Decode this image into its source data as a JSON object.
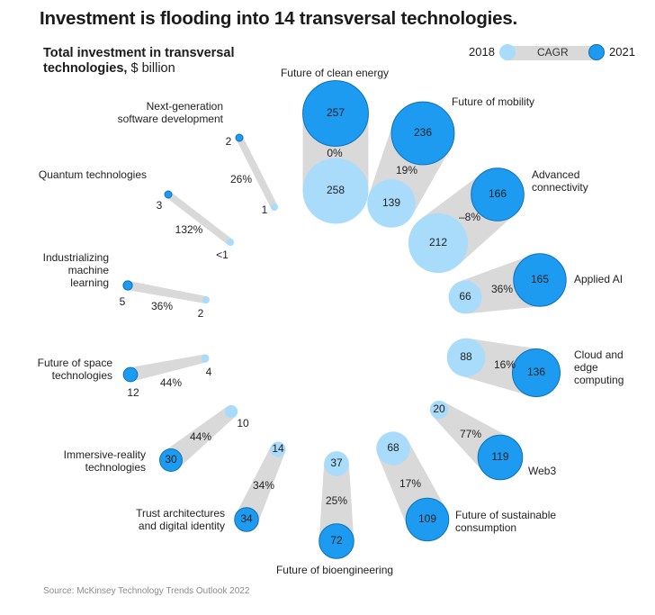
{
  "title": "Investment is flooding into 14 transversal technologies.",
  "subtitle_bold": "Total investment in transversal technologies,",
  "subtitle_unit": "$ billion",
  "legend": {
    "start_label": "2018",
    "middle_label": "CAGR",
    "end_label": "2021"
  },
  "source": "Source: McKinsey Technology Trends Outlook 2022",
  "colors": {
    "v2018": "#a8dcfa",
    "v2021": "#1d9bf0",
    "v2021_stroke": "#0d70b8",
    "connector": "#d9d9d9"
  },
  "chart_data": {
    "type": "bubble",
    "value_unit": "$ billion",
    "series": [
      {
        "name": "2018"
      },
      {
        "name": "2021"
      }
    ],
    "technologies": [
      {
        "name": "Future of clean energy",
        "v2018": 258,
        "v2021": 257,
        "v2018_label": "258",
        "v2021_label": "257",
        "cagr": "0%"
      },
      {
        "name": "Future of mobility",
        "v2018": 139,
        "v2021": 236,
        "v2018_label": "139",
        "v2021_label": "236",
        "cagr": "19%"
      },
      {
        "name": "Advanced connectivity",
        "v2018": 212,
        "v2021": 166,
        "v2018_label": "212",
        "v2021_label": "166",
        "cagr": "–8%"
      },
      {
        "name": "Applied AI",
        "v2018": 66,
        "v2021": 165,
        "v2018_label": "66",
        "v2021_label": "165",
        "cagr": "36%"
      },
      {
        "name": "Cloud and edge computing",
        "v2018": 88,
        "v2021": 136,
        "v2018_label": "88",
        "v2021_label": "136",
        "cagr": "16%"
      },
      {
        "name": "Web3",
        "v2018": 20,
        "v2021": 119,
        "v2018_label": "20",
        "v2021_label": "119",
        "cagr": "77%"
      },
      {
        "name": "Future of sustainable consumption",
        "v2018": 68,
        "v2021": 109,
        "v2018_label": "68",
        "v2021_label": "109",
        "cagr": "17%"
      },
      {
        "name": "Future of bioengineering",
        "v2018": 37,
        "v2021": 72,
        "v2018_label": "37",
        "v2021_label": "72",
        "cagr": "25%"
      },
      {
        "name": "Trust architectures and digital identity",
        "v2018": 14,
        "v2021": 34,
        "v2018_label": "14",
        "v2021_label": "34",
        "cagr": "34%"
      },
      {
        "name": "Immersive-reality technologies",
        "v2018": 10,
        "v2021": 30,
        "v2018_label": "10",
        "v2021_label": "30",
        "cagr": "44%"
      },
      {
        "name": "Future of space technologies",
        "v2018": 4,
        "v2021": 12,
        "v2018_label": "4",
        "v2021_label": "12",
        "cagr": "44%"
      },
      {
        "name": "Industrializing machine learning",
        "v2018": 2,
        "v2021": 5,
        "v2018_label": "2",
        "v2021_label": "5",
        "cagr": "36%"
      },
      {
        "name": "Quantum technologies",
        "v2018": 0.3,
        "v2021": 3,
        "v2018_label": "<1",
        "v2021_label": "3",
        "cagr": "132%"
      },
      {
        "name": "Next-generation software development",
        "v2018": 1,
        "v2021": 2,
        "v2018_label": "1",
        "v2021_label": "2",
        "cagr": "26%"
      }
    ]
  }
}
